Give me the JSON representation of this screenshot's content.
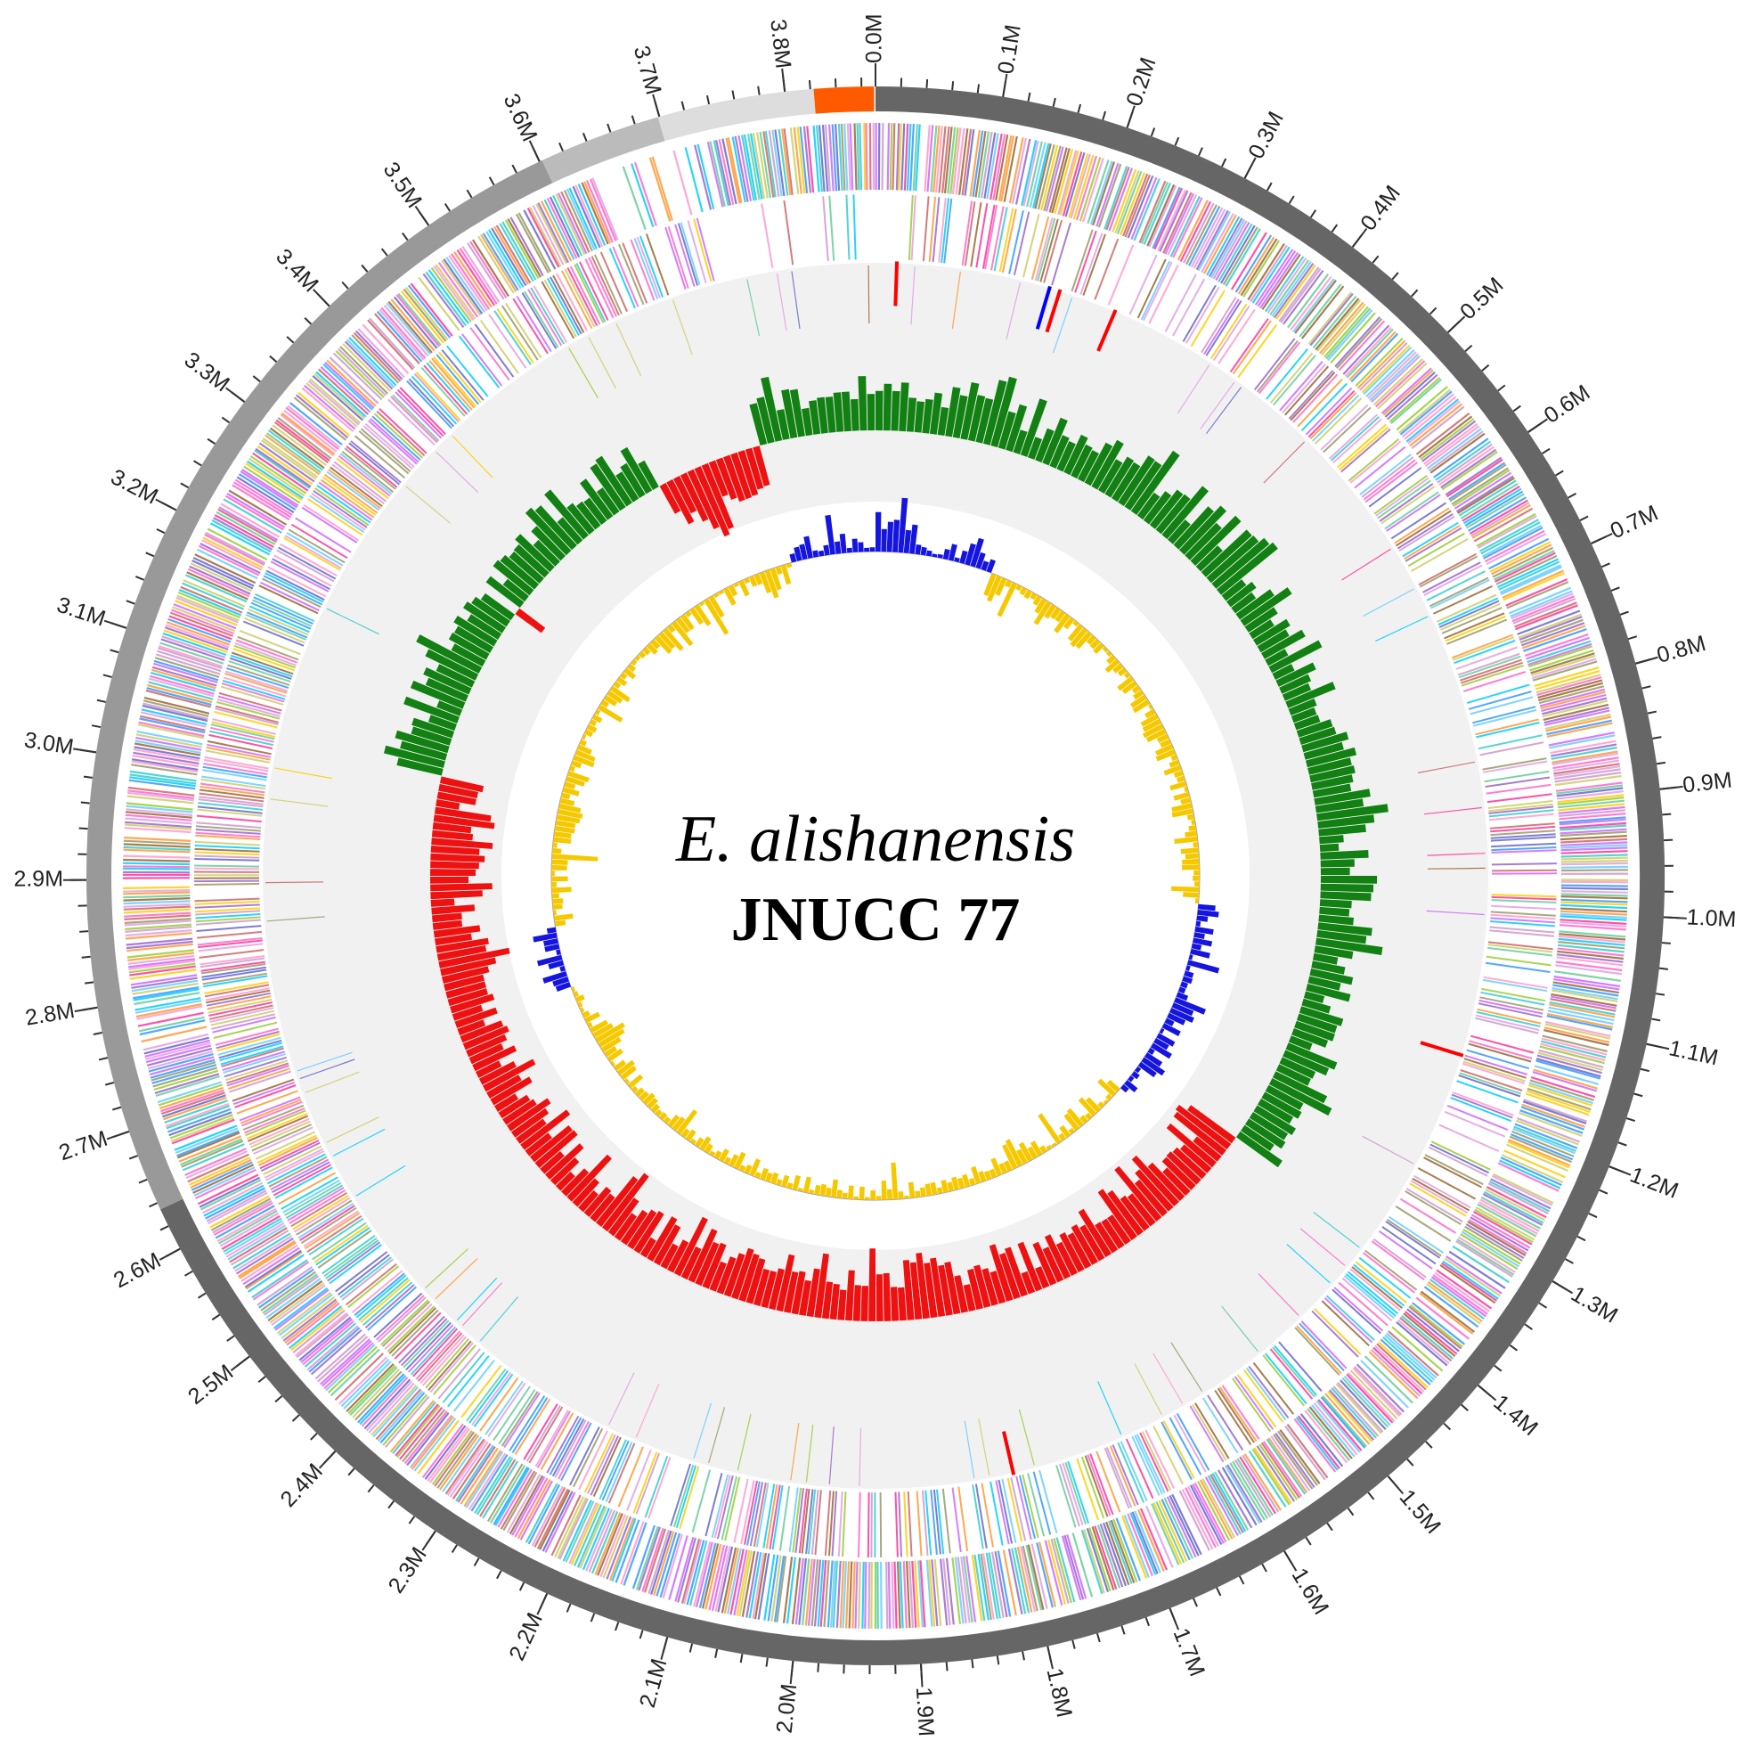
{
  "title": {
    "species": "E. alishanensis",
    "strain": "JNUCC 77"
  },
  "position_labels": [
    "0.0M",
    "0.1M",
    "0.2M",
    "0.3M",
    "0.4M",
    "0.5M",
    "0.6M",
    "0.7M",
    "0.8M",
    "0.9M",
    "1.0M",
    "1.1M",
    "1.2M",
    "1.3M",
    "1.4M",
    "1.5M",
    "1.6M",
    "1.7M",
    "1.8M",
    "1.9M",
    "2.0M",
    "2.1M",
    "2.2M",
    "2.3M",
    "2.4M",
    "2.5M",
    "2.6M",
    "2.7M",
    "2.8M",
    "2.9M",
    "3.0M",
    "3.1M",
    "3.2M",
    "3.3M",
    "3.4M",
    "3.5M",
    "3.6M",
    "3.7M",
    "3.8M"
  ]
}
